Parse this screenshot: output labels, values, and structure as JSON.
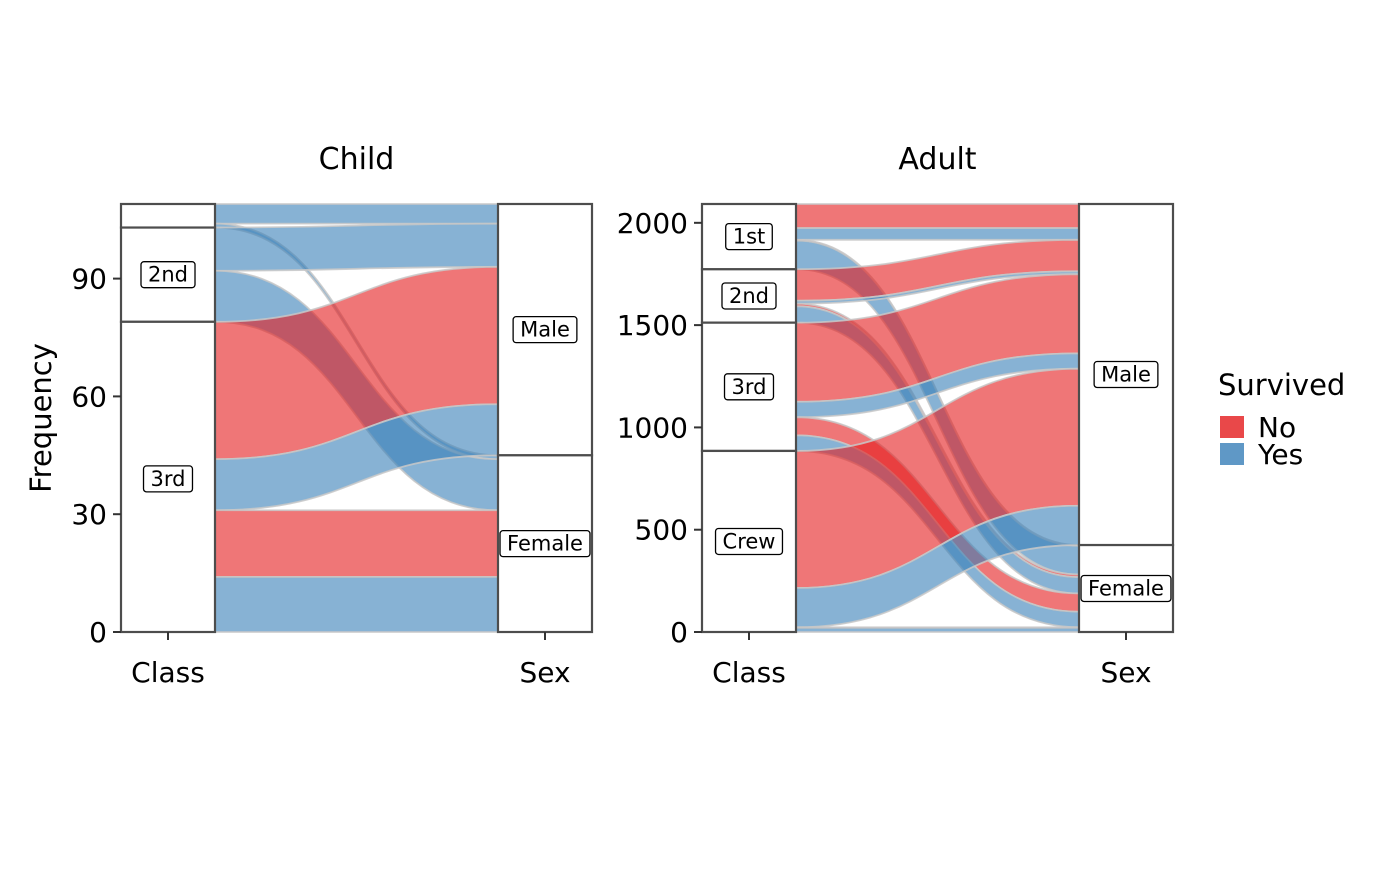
{
  "chart_data": {
    "type": "alluvial",
    "ylabel": "Frequency",
    "axes": [
      "Class",
      "Sex"
    ],
    "legend": {
      "title": "Survived",
      "position": "right",
      "entries": [
        {
          "label": "No",
          "color": "#E41A1C"
        },
        {
          "label": "Yes",
          "color": "#377EB8"
        }
      ]
    },
    "grid": false,
    "stratum_order": {
      "Class": [
        "1st",
        "2nd",
        "3rd",
        "Crew"
      ],
      "Sex": [
        "Male",
        "Female"
      ]
    },
    "facets": [
      {
        "title": "Child",
        "ylim": [
          0,
          109
        ],
        "yticks": [
          0,
          30,
          60,
          90
        ],
        "labeled_strata": [
          "2nd",
          "3rd",
          "Male",
          "Female"
        ],
        "flows": [
          {
            "class": "1st",
            "sex": "Male",
            "survived": "Yes",
            "n": 5
          },
          {
            "class": "1st",
            "sex": "Female",
            "survived": "Yes",
            "n": 1
          },
          {
            "class": "2nd",
            "sex": "Male",
            "survived": "Yes",
            "n": 11
          },
          {
            "class": "2nd",
            "sex": "Female",
            "survived": "Yes",
            "n": 13
          },
          {
            "class": "3rd",
            "sex": "Male",
            "survived": "No",
            "n": 35
          },
          {
            "class": "3rd",
            "sex": "Male",
            "survived": "Yes",
            "n": 13
          },
          {
            "class": "3rd",
            "sex": "Female",
            "survived": "No",
            "n": 17
          },
          {
            "class": "3rd",
            "sex": "Female",
            "survived": "Yes",
            "n": 14
          }
        ]
      },
      {
        "title": "Adult",
        "ylim": [
          0,
          2092
        ],
        "yticks": [
          0,
          500,
          1000,
          1500,
          2000
        ],
        "labeled_strata": [
          "1st",
          "2nd",
          "3rd",
          "Crew",
          "Male",
          "Female"
        ],
        "flows": [
          {
            "class": "1st",
            "sex": "Male",
            "survived": "No",
            "n": 118
          },
          {
            "class": "1st",
            "sex": "Male",
            "survived": "Yes",
            "n": 57
          },
          {
            "class": "1st",
            "sex": "Female",
            "survived": "No",
            "n": 4
          },
          {
            "class": "1st",
            "sex": "Female",
            "survived": "Yes",
            "n": 140
          },
          {
            "class": "2nd",
            "sex": "Male",
            "survived": "No",
            "n": 154
          },
          {
            "class": "2nd",
            "sex": "Male",
            "survived": "Yes",
            "n": 14
          },
          {
            "class": "2nd",
            "sex": "Female",
            "survived": "No",
            "n": 13
          },
          {
            "class": "2nd",
            "sex": "Female",
            "survived": "Yes",
            "n": 80
          },
          {
            "class": "3rd",
            "sex": "Male",
            "survived": "No",
            "n": 387
          },
          {
            "class": "3rd",
            "sex": "Male",
            "survived": "Yes",
            "n": 75
          },
          {
            "class": "3rd",
            "sex": "Female",
            "survived": "No",
            "n": 89
          },
          {
            "class": "3rd",
            "sex": "Female",
            "survived": "Yes",
            "n": 76
          },
          {
            "class": "Crew",
            "sex": "Male",
            "survived": "No",
            "n": 670
          },
          {
            "class": "Crew",
            "sex": "Male",
            "survived": "Yes",
            "n": 192
          },
          {
            "class": "Crew",
            "sex": "Female",
            "survived": "No",
            "n": 3
          },
          {
            "class": "Crew",
            "sex": "Female",
            "survived": "Yes",
            "n": 20
          }
        ]
      }
    ]
  }
}
